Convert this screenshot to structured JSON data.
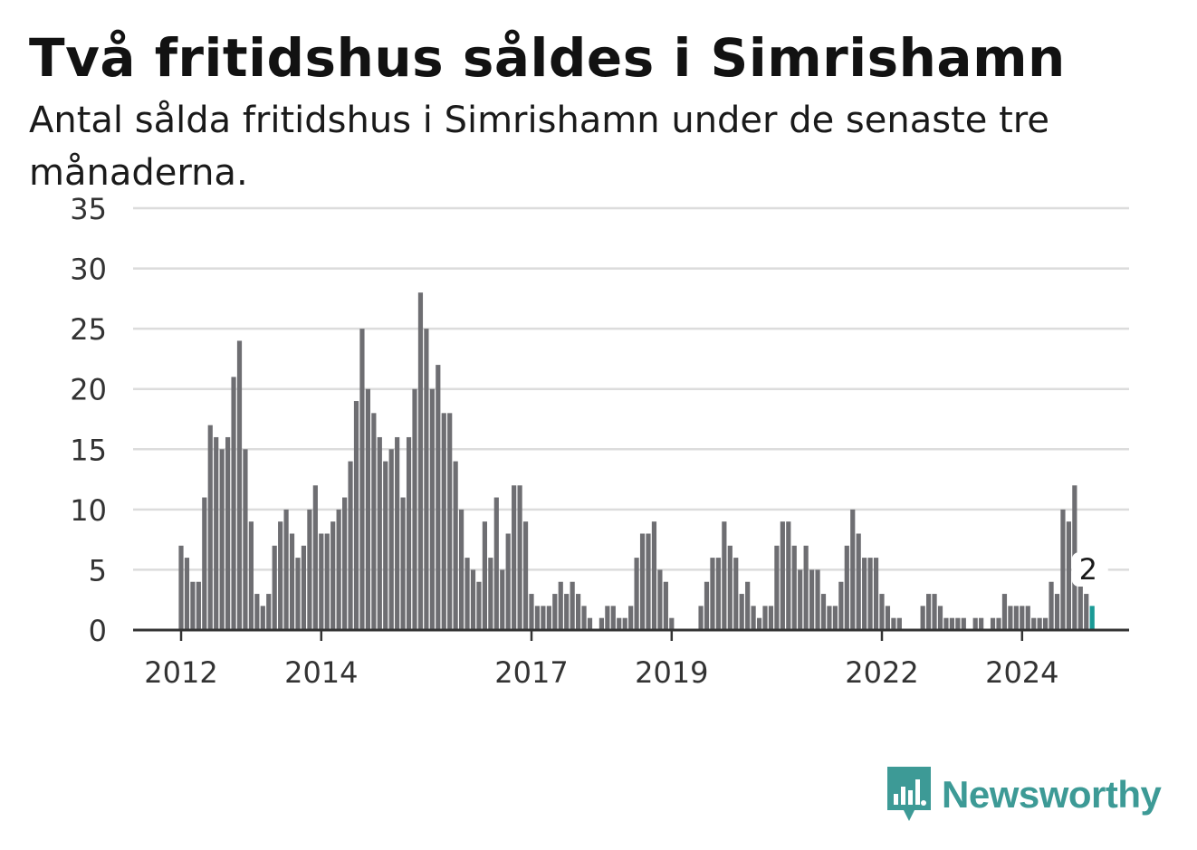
{
  "title": "Två fritidshus såldes i Simrishamn",
  "subtitle": "Antal sålda fritidshus i Simrishamn under de senaste tre månaderna.",
  "brand": {
    "name": "Newsworthy",
    "icon": "newsworthy-logo-icon",
    "color": "#3d9a96"
  },
  "chart_data": {
    "type": "bar",
    "title": "Två fritidshus såldes i Simrishamn",
    "subtitle": "Antal sålda fritidshus i Simrishamn under de senaste tre månaderna.",
    "xlabel": "",
    "ylabel": "",
    "ylim": [
      0,
      35
    ],
    "yticks": [
      0,
      5,
      10,
      15,
      20,
      25,
      30,
      35
    ],
    "xtick_labels": [
      {
        "label": "2012",
        "index": 0
      },
      {
        "label": "2014",
        "index": 24
      },
      {
        "label": "2017",
        "index": 60
      },
      {
        "label": "2019",
        "index": 84
      },
      {
        "label": "2022",
        "index": 120
      },
      {
        "label": "2024",
        "index": 144
      }
    ],
    "grid": true,
    "bar_color": "#6e6e72",
    "highlight_color": "#1a9a96",
    "highlight_last": true,
    "callout": {
      "text": "2",
      "index": 155
    },
    "values": [
      7,
      6,
      4,
      4,
      11,
      17,
      16,
      15,
      16,
      21,
      24,
      15,
      9,
      3,
      2,
      3,
      7,
      9,
      10,
      8,
      6,
      7,
      10,
      12,
      8,
      8,
      9,
      10,
      11,
      14,
      19,
      25,
      20,
      18,
      16,
      14,
      15,
      16,
      11,
      16,
      20,
      28,
      25,
      20,
      22,
      18,
      18,
      14,
      10,
      6,
      5,
      4,
      9,
      6,
      11,
      5,
      8,
      12,
      12,
      9,
      3,
      2,
      2,
      2,
      3,
      4,
      3,
      4,
      3,
      2,
      1,
      0,
      1,
      2,
      2,
      1,
      1,
      2,
      6,
      8,
      8,
      9,
      5,
      4,
      1,
      0,
      0,
      0,
      0,
      2,
      4,
      6,
      6,
      9,
      7,
      6,
      3,
      4,
      2,
      1,
      2,
      2,
      7,
      9,
      9,
      7,
      5,
      7,
      5,
      5,
      3,
      2,
      2,
      4,
      7,
      10,
      8,
      6,
      6,
      6,
      3,
      2,
      1,
      1,
      0,
      0,
      0,
      2,
      3,
      3,
      2,
      1,
      1,
      1,
      1,
      0,
      1,
      1,
      0,
      1,
      1,
      3,
      2,
      2,
      2,
      2,
      1,
      1,
      1,
      4,
      3,
      10,
      9,
      12,
      4,
      3,
      2
    ]
  }
}
